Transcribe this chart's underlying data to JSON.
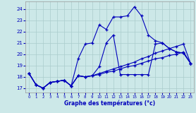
{
  "xlabel": "Graphe des températures (°c)",
  "bg_color": "#cce8e8",
  "grid_color": "#aacccc",
  "line_color": "#0000bb",
  "xlim_min": -0.5,
  "xlim_max": 23.5,
  "ylim_min": 16.6,
  "ylim_max": 24.7,
  "yticks": [
    17,
    18,
    19,
    20,
    21,
    22,
    23,
    24
  ],
  "xticks": [
    0,
    1,
    2,
    3,
    4,
    5,
    6,
    7,
    8,
    9,
    10,
    11,
    12,
    13,
    14,
    15,
    16,
    17,
    18,
    19,
    20,
    21,
    22,
    23
  ],
  "curves": [
    [
      18.3,
      17.3,
      17.0,
      17.5,
      17.6,
      17.7,
      17.2,
      19.6,
      20.9,
      21.0,
      22.6,
      22.2,
      23.3,
      23.3,
      23.4,
      24.2,
      23.4,
      21.7,
      21.2,
      21.0,
      20.5,
      20.2,
      20.1,
      19.2
    ],
    [
      18.3,
      17.3,
      17.0,
      17.5,
      17.6,
      17.7,
      17.2,
      18.1,
      18.0,
      18.1,
      18.9,
      21.0,
      21.7,
      18.2,
      18.2,
      18.2,
      18.2,
      18.2,
      20.9,
      21.0,
      20.5,
      20.2,
      20.1,
      19.2
    ],
    [
      18.3,
      17.3,
      17.0,
      17.5,
      17.6,
      17.7,
      17.2,
      18.1,
      18.0,
      18.1,
      18.3,
      18.5,
      18.7,
      18.9,
      19.1,
      19.3,
      19.6,
      19.8,
      20.1,
      20.3,
      20.5,
      20.7,
      20.9,
      19.2
    ],
    [
      18.3,
      17.3,
      17.0,
      17.5,
      17.6,
      17.7,
      17.2,
      18.1,
      18.0,
      18.1,
      18.2,
      18.4,
      18.5,
      18.7,
      18.9,
      19.0,
      19.2,
      19.4,
      19.6,
      19.7,
      19.9,
      20.0,
      20.2,
      19.2
    ]
  ]
}
